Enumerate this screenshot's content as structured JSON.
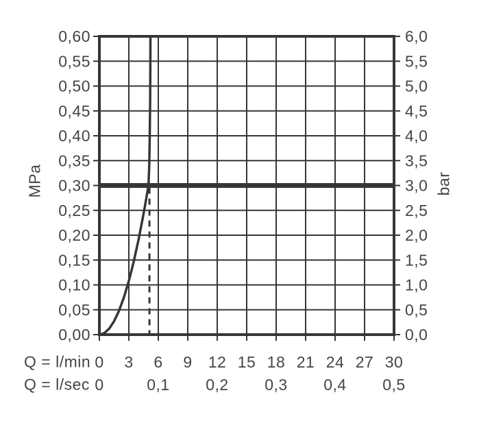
{
  "colors": {
    "background": "#ffffff",
    "line": "#363636",
    "text": "#454545"
  },
  "chart_data": {
    "type": "line",
    "grid": true,
    "x_axis": {
      "label": "Q = l/min",
      "range": [
        0,
        30
      ],
      "tick_values": [
        0,
        3,
        6,
        9,
        12,
        15,
        18,
        21,
        24,
        27,
        30
      ],
      "tick_labels": [
        "0",
        "3",
        "6",
        "9",
        "12",
        "15",
        "18",
        "21",
        "24",
        "27",
        "30"
      ]
    },
    "x_axis_secondary": {
      "label": "Q = l/sec",
      "ticks": [
        {
          "label": "0",
          "at_lmin": 0
        },
        {
          "label": "0,1",
          "at_lmin": 6
        },
        {
          "label": "0,2",
          "at_lmin": 12
        },
        {
          "label": "0,3",
          "at_lmin": 18
        },
        {
          "label": "0,4",
          "at_lmin": 24
        },
        {
          "label": "0,5",
          "at_lmin": 30
        }
      ]
    },
    "y_axis_left": {
      "label": "MPa",
      "range": [
        0,
        0.6
      ],
      "tick_step": 0.05,
      "tick_labels": [
        "0,00",
        "0,05",
        "0,10",
        "0,15",
        "0,20",
        "0,25",
        "0,30",
        "0,35",
        "0,40",
        "0,45",
        "0,50",
        "0,55",
        "0,60"
      ]
    },
    "y_axis_right": {
      "label": "bar",
      "range": [
        0,
        6
      ],
      "tick_step": 0.5,
      "tick_labels": [
        "0,0",
        "0,5",
        "1,0",
        "1,5",
        "2,0",
        "2,5",
        "3,0",
        "3,5",
        "4,0",
        "4,5",
        "5,0",
        "5,5",
        "6,0"
      ]
    },
    "series": [
      {
        "name": "flow-characteristic-curve",
        "style": "solid",
        "points_lmin_mpa": [
          [
            0,
            0
          ],
          [
            0.5,
            0.003
          ],
          [
            1,
            0.012
          ],
          [
            1.5,
            0.027
          ],
          [
            2,
            0.048
          ],
          [
            2.5,
            0.075
          ],
          [
            3,
            0.108
          ],
          [
            3.5,
            0.147
          ],
          [
            4,
            0.192
          ],
          [
            4.5,
            0.243
          ],
          [
            4.75,
            0.271
          ],
          [
            5.0,
            0.3
          ],
          [
            5.08,
            0.34
          ],
          [
            5.13,
            0.4
          ],
          [
            5.17,
            0.47
          ],
          [
            5.19,
            0.54
          ],
          [
            5.2,
            0.6
          ]
        ]
      }
    ],
    "reference_line": {
      "name": "pressure-3-bar-line",
      "value_mpa": 0.3,
      "value_bar": 3.0,
      "style": "thick"
    },
    "guide_line": {
      "name": "flow-at-3-bar-guide",
      "x_lmin": 5.1,
      "from_mpa": 0,
      "to_mpa": 0.3,
      "style": "dashed"
    }
  }
}
